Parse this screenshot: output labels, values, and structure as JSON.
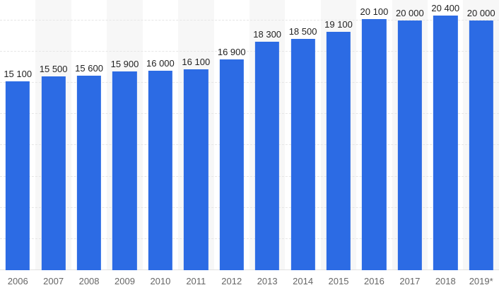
{
  "chart_data": {
    "type": "bar",
    "title": "",
    "xlabel": "",
    "ylabel": "",
    "categories": [
      "2006",
      "2007",
      "2008",
      "2009",
      "2010",
      "2011",
      "2012",
      "2013",
      "2014",
      "2015",
      "2016",
      "2017",
      "2018",
      "2019*"
    ],
    "values": [
      15100,
      15500,
      15600,
      15900,
      16000,
      16100,
      16900,
      18300,
      18500,
      19100,
      20100,
      20000,
      20400,
      20000
    ],
    "labels": [
      "15 100",
      "15 500",
      "15 600",
      "15 900",
      "16 000",
      "16 100",
      "16 900",
      "18 300",
      "18 500",
      "19 100",
      "20 100",
      "20 000",
      "20 400",
      "20 000"
    ],
    "ylim": [
      0,
      21600
    ],
    "grid": true,
    "grid_step": 2500,
    "legend": false,
    "bar_color": "#2c6be4",
    "value_label_color": "#222222",
    "axis_label_color": "#666666"
  }
}
